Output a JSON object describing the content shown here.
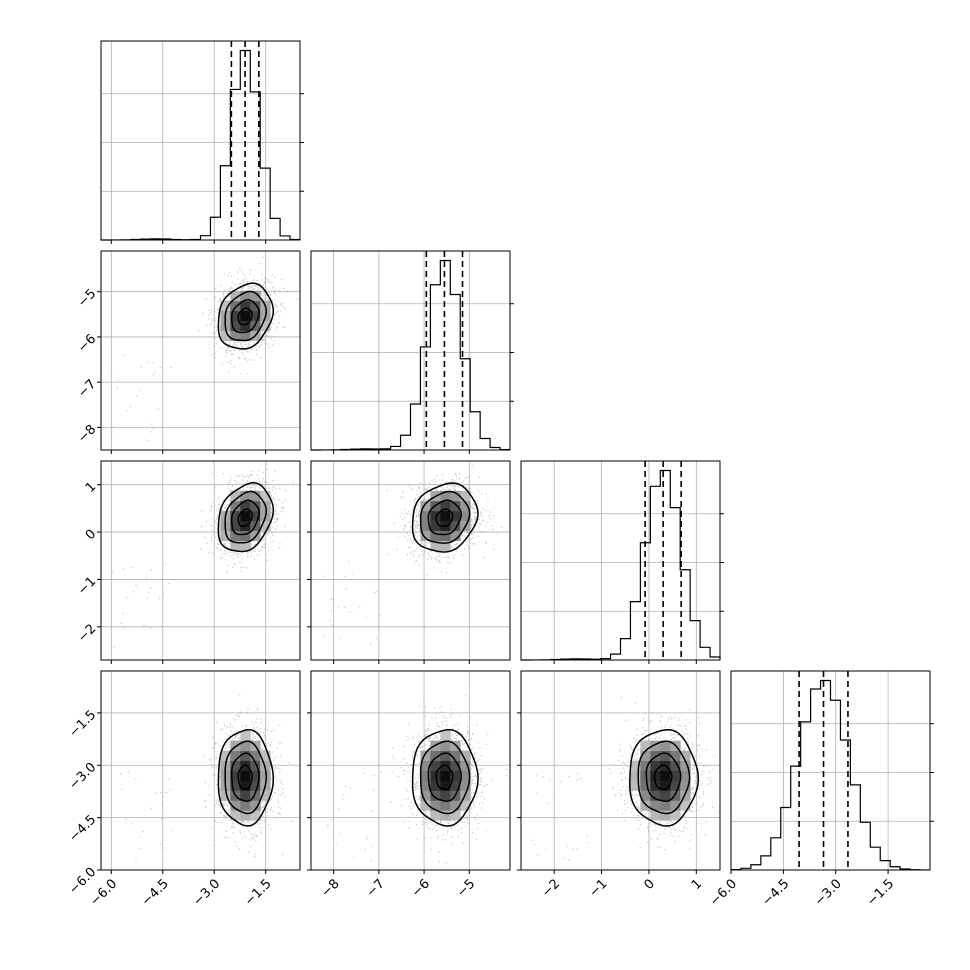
{
  "chart_data": {
    "type": "corner",
    "dimensions": 4,
    "quantiles": [
      0.16,
      0.5,
      0.84
    ],
    "parameters": [
      {
        "index": 0,
        "range": [
          -6.3,
          -0.5
        ],
        "ticks": [
          -6.0,
          -4.5,
          -3.0,
          -1.5
        ],
        "tick_labels": [
          "−6.0",
          "−4.5",
          "−3.0",
          "−1.5"
        ],
        "mean": -2.1,
        "sigma": 0.42,
        "quantile_values": [
          -2.5,
          -2.1,
          -1.7
        ]
      },
      {
        "index": 1,
        "range": [
          -8.5,
          -4.1
        ],
        "ticks": [
          -8,
          -7,
          -6,
          -5
        ],
        "tick_labels": [
          "−8",
          "−7",
          "−6",
          "−5"
        ],
        "mean": -5.55,
        "sigma": 0.38,
        "quantile_values": [
          -5.95,
          -5.55,
          -5.15
        ]
      },
      {
        "index": 2,
        "range": [
          -2.7,
          1.5
        ],
        "ticks": [
          -2,
          -1,
          0,
          1
        ],
        "tick_labels": [
          "−2",
          "−1",
          "0",
          "1"
        ],
        "mean": 0.3,
        "sigma": 0.38,
        "quantile_values": [
          -0.08,
          0.3,
          0.68
        ]
      },
      {
        "index": 3,
        "range": [
          -6.0,
          -0.3
        ],
        "ticks": [
          -6.0,
          -4.5,
          -3.0,
          -1.5
        ],
        "tick_labels": [
          "−6.0",
          "−4.5",
          "−3.0",
          "−1.5"
        ],
        "mean": -3.35,
        "sigma": 0.72,
        "quantile_values": [
          -4.05,
          -3.35,
          -2.65
        ]
      }
    ],
    "correlations": [
      {
        "x": 0,
        "y": 1,
        "rho": 0.2
      },
      {
        "x": 0,
        "y": 2,
        "rho": 0.25
      },
      {
        "x": 1,
        "y": 2,
        "rho": 0.15
      },
      {
        "x": 0,
        "y": 3,
        "rho": 0.0
      },
      {
        "x": 1,
        "y": 3,
        "rho": 0.0
      },
      {
        "x": 2,
        "y": 3,
        "rho": 0.0
      }
    ],
    "histogram_bins": 20,
    "contour_levels_sigma": [
      0.5,
      1.0,
      1.5,
      2.0
    ],
    "grid": true
  }
}
